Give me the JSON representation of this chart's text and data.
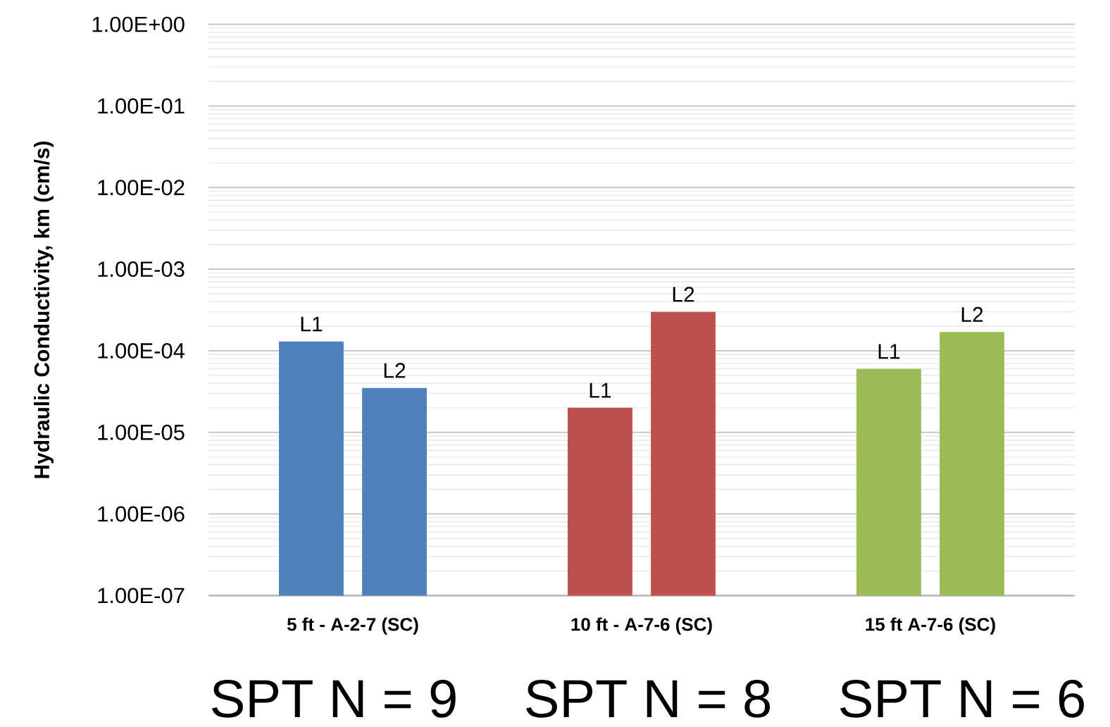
{
  "chart_data": {
    "type": "bar",
    "ylabel": "Hydraulic Conductivity, km (cm/s)",
    "categories": [
      "5 ft - A-2-7 (SC)",
      "10 ft - A-7-6 (SC)",
      "15 ft A-7-6 (SC)"
    ],
    "series": [
      {
        "name": "L1",
        "colors": [
          "#4f81bd",
          "#c0504d",
          "#9bbb59"
        ],
        "values": [
          0.00013,
          2e-05,
          6e-05
        ]
      },
      {
        "name": "L2",
        "colors": [
          "#4f81bd",
          "#c0504d",
          "#9bbb59"
        ],
        "values": [
          3.5e-05,
          0.0003,
          0.00017
        ]
      }
    ],
    "log": "y",
    "ylim": [
      1e-07,
      1
    ],
    "yticks": [
      {
        "value": 1e-07,
        "label": "1.00E-07"
      },
      {
        "value": 1e-06,
        "label": "1.00E-06"
      },
      {
        "value": 1e-05,
        "label": "1.00E-05"
      },
      {
        "value": 0.0001,
        "label": "1.00E-04"
      },
      {
        "value": 0.001,
        "label": "1.00E-03"
      },
      {
        "value": 0.01,
        "label": "1.00E-02"
      },
      {
        "value": 0.1,
        "label": "1.00E-01"
      },
      {
        "value": 1,
        "label": "1.00E+00"
      }
    ],
    "grid": "y",
    "annotations": [
      "SPT N = 9",
      "SPT N = 8",
      "SPT N = 6"
    ]
  }
}
